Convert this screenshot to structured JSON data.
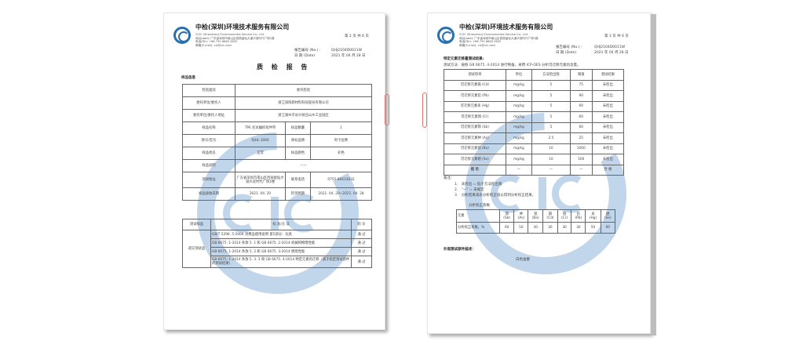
{
  "company": {
    "name": "中检(深圳)环境技术服务有限公司",
    "name_en": "CCIC (Shenzhen) Environmental Service Co., Ltd.",
    "address": "地址(Add): 广东省深圳市南山区西丽留仙大道众冠时代广场1楼",
    "tel": "电话(Tel): +86 755 8663 3632",
    "email": "邮箱(E-mail): cic@cic.com"
  },
  "watermark": "CIC",
  "page1": {
    "page_no": "第 2 页 共 6 页",
    "report_no_label": "报告编号 (No.) :",
    "report_no": "QHJ2104D0011W",
    "date_label": "日 期 (Date)",
    "date": "2021 年 04 月 28 日",
    "title": "质 检 报 告",
    "section": "样品信息",
    "info_rows": [
      {
        "label": "检验类别",
        "value": "委托检验"
      },
      {
        "label": "委托单位/委托人",
        "value": "浙江润阳新材料科技股份有限公司"
      },
      {
        "label": "委托单位/委托人地址",
        "value": "浙江湖州市长兴县吕山乡工业园区"
      }
    ],
    "sample_name_label": "样品名称",
    "sample_name": "TPE 尼龙编织扣件带",
    "qty_label": "样品数量",
    "qty": "1",
    "model_label": "款号/型号",
    "model": "RJHL-1000",
    "brand_label": "商标品牌",
    "brand": "阿卡拉牌",
    "state_label": "样品状态",
    "state": "正常",
    "color_label": "样品颜色",
    "color": "彩色",
    "desc_label": "样品说明",
    "desc": "——",
    "lab_label": "测试地址",
    "lab": "广东省深圳市南山区西丽留仙大道众冠时代广场1楼",
    "phone_label": "联系电话",
    "phone": "0755-86633632",
    "recv_label": "样品接收日期",
    "recv": "2021. 04. 20",
    "period_label": "检测周期",
    "period": "2021. 04. 20~2021. 04. 28",
    "tests_header": [
      "测试样品",
      "标 准/方 法",
      "结 论"
    ],
    "sample_group": "递交测试品",
    "tests": [
      {
        "std": "GB/T 5296. 5-2006 消费品使用说明 第5部分：玩具",
        "result": "通 过"
      },
      {
        "std": "GB 6675. 1-2014 条款 5. 1 和 GB 6675. 2-2014 机械和物理性能",
        "result": "通 过"
      },
      {
        "std": "GB 6675. 1-2014 条款 5. 2 和 GB 6675. 3-2014 燃烧性能",
        "result": "通 过"
      },
      {
        "std": "GB 6675. 1-2014 条款 5. 3. 3 和 GB 6675. 4-2014 特定元素的迁移（基于指定测试部件的测试结果）",
        "result": "通 过"
      }
    ]
  },
  "page2": {
    "page_no": "第 3 页 共 6 页",
    "report_no_label": "报告编号 (No.) :",
    "report_no": "QHJ2104D0011W",
    "date_label": "日 期 (Date)",
    "date": "2021 年 04 月 28 日",
    "section": "特定元素迁移量测试结果:",
    "method": "测试方法：按照 GB 6675. 4-2014 进行制备，采用 ICP-OES 分析可迁移元素的含量。",
    "headers": [
      "测试项目",
      "单位",
      "方法检出限",
      "限值",
      "测试结果"
    ],
    "rows": [
      [
        "可迁移元素镉 (Cd)",
        "mg/kg",
        "5",
        "75",
        "未检出"
      ],
      [
        "可迁移元素铅 (Pb)",
        "mg/kg",
        "5",
        "90",
        "未检出"
      ],
      [
        "可迁移元素汞 (Hg)",
        "mg/kg",
        "5",
        "60",
        "未检出"
      ],
      [
        "可迁移元素铬 (Cr)",
        "mg/kg",
        "5",
        "60",
        "未检出"
      ],
      [
        "可迁移元素锑 (Sb)",
        "mg/kg",
        "5",
        "60",
        "未检出"
      ],
      [
        "可迁移元素砷 (As)",
        "mg/kg",
        "2.5",
        "25",
        "未检出"
      ],
      [
        "可迁移元素钡 (Ba)",
        "mg/kg",
        "10",
        "1000",
        "未检出"
      ],
      [
        "可迁移元素硒 (Se)",
        "mg/kg",
        "10",
        "500",
        "未检出"
      ]
    ],
    "conclusion": [
      "结 论",
      "—",
      "—",
      "—",
      "合 格"
    ],
    "notes_title": "备注：",
    "notes": [
      "1.　未检出 = 低于方法检出限",
      "2.　\"—\" = 未规定",
      "3.　分析结果减去分析校正值以得到分析校正结果。"
    ],
    "corr_title": "分析校正系数",
    "corr_header_label": "元素",
    "corr_elements": [
      "锑\n(Sb)",
      "砷\n(As)",
      "钡\n(Ba)",
      "镉\n(Cd)",
      "铬\n(Cr)",
      "铅\n(Pb)",
      "汞\n(Hg)",
      "硒\n(Se)"
    ],
    "corr_row_label": "分析校正系数，%",
    "corr_values": [
      "60",
      "50",
      "30",
      "30",
      "30",
      "30",
      "50",
      "60"
    ],
    "desc_title": "外观测试部件描述：",
    "desc": "白色油墨"
  }
}
